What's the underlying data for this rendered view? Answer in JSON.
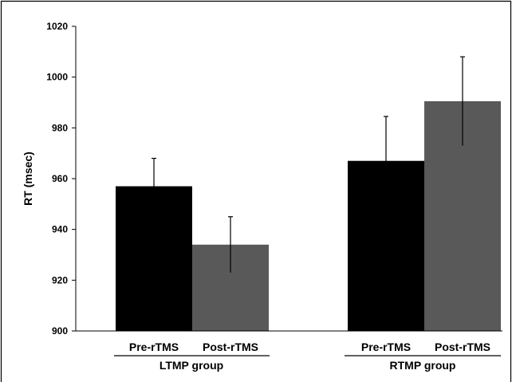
{
  "chart_data": {
    "type": "bar",
    "title": "",
    "ylabel": "RT (msec)",
    "xlabel": "",
    "ylim": [
      900,
      1020
    ],
    "yticks": [
      900,
      920,
      940,
      960,
      980,
      1000,
      1020
    ],
    "grid": false,
    "groups": [
      {
        "label": "LTMP group",
        "bars": [
          {
            "label": "Pre-rTMS",
            "value": 957,
            "error": 11,
            "color": "#000000"
          },
          {
            "label": "Post-rTMS",
            "value": 934,
            "error": 11,
            "color": "#595959"
          }
        ]
      },
      {
        "label": "RTMP group",
        "bars": [
          {
            "label": "Pre-rTMS",
            "value": 967,
            "error": 17.5,
            "color": "#000000"
          },
          {
            "label": "Post-rTMS",
            "value": 990.5,
            "error": 17.5,
            "color": "#595959"
          }
        ]
      }
    ]
  }
}
